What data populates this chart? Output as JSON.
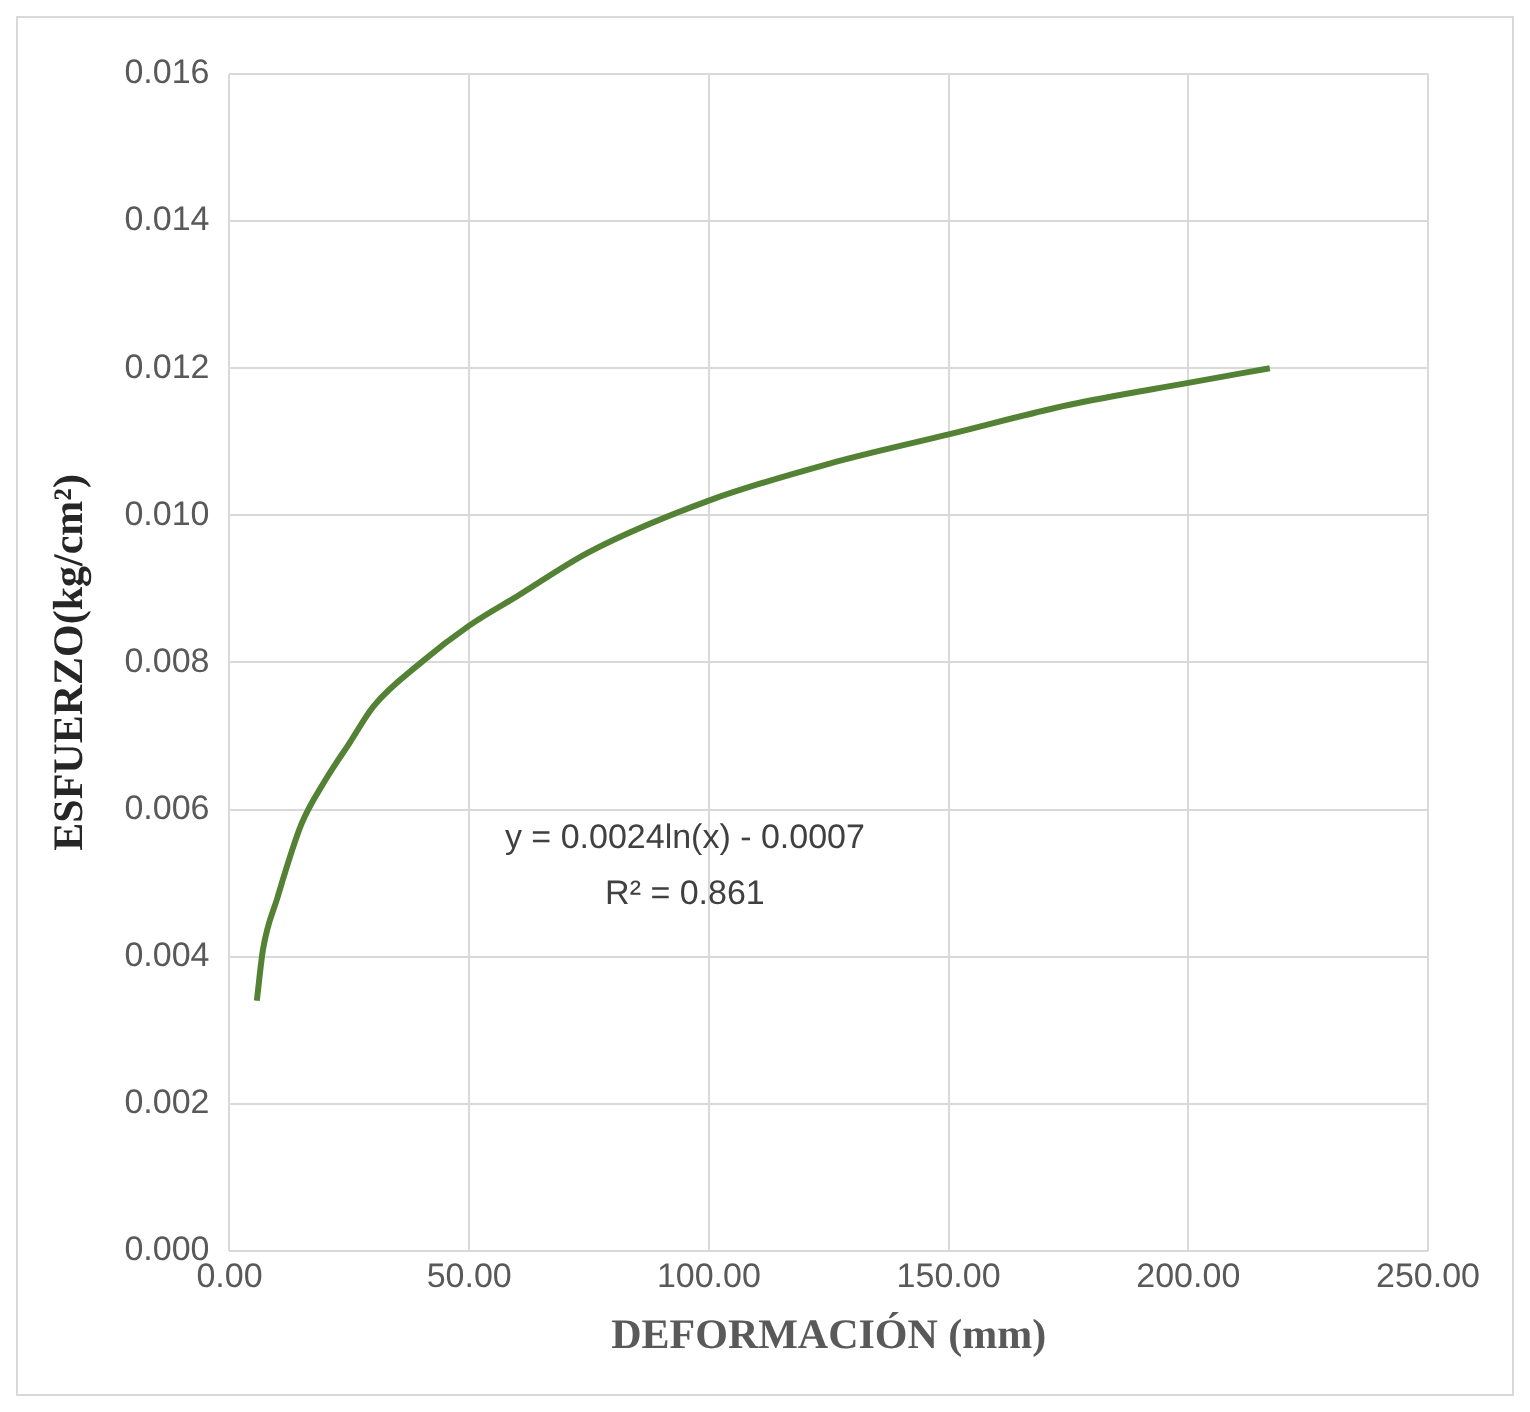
{
  "chart_data": {
    "type": "line",
    "xlabel": "DEFORMACIÓN (mm)",
    "ylabel": "ESFUERZO(kg/cm²)",
    "series": [
      {
        "color": "#548235",
        "x": [
          5.7,
          7,
          10,
          15,
          20,
          25,
          30,
          40,
          50,
          60,
          75,
          100,
          125,
          150,
          175,
          200,
          217
        ],
        "values": [
          0.0034,
          0.0041,
          0.0048,
          0.0058,
          0.0064,
          0.0069,
          0.0074,
          0.008,
          0.0085,
          0.0089,
          0.0095,
          0.0102,
          0.0107,
          0.0111,
          0.0115,
          0.0118,
          0.012
        ]
      }
    ],
    "xlim": [
      0,
      250
    ],
    "xticks": [
      {
        "value": 0,
        "label": "0.00"
      },
      {
        "value": 50,
        "label": "50.00"
      },
      {
        "value": 100,
        "label": "100.00"
      },
      {
        "value": 150,
        "label": "150.00"
      },
      {
        "value": 200,
        "label": "200.00"
      },
      {
        "value": 250,
        "label": "250.00"
      }
    ],
    "ylim": [
      0,
      0.016
    ],
    "yticks": [
      {
        "value": 0,
        "label": "0.000"
      },
      {
        "value": 0.002,
        "label": "0.002"
      },
      {
        "value": 0.004,
        "label": "0.004"
      },
      {
        "value": 0.006,
        "label": "0.006"
      },
      {
        "value": 0.008,
        "label": "0.008"
      },
      {
        "value": 0.01,
        "label": "0.010"
      },
      {
        "value": 0.012,
        "label": "0.012"
      },
      {
        "value": 0.014,
        "label": "0.014"
      },
      {
        "value": 0.016,
        "label": "0.016"
      }
    ],
    "annotations": [
      "y = 0.0024ln(x) - 0.0007",
      "R² = 0.861"
    ],
    "grid": true,
    "legend": false,
    "marker": "none",
    "line_style": "solid"
  }
}
